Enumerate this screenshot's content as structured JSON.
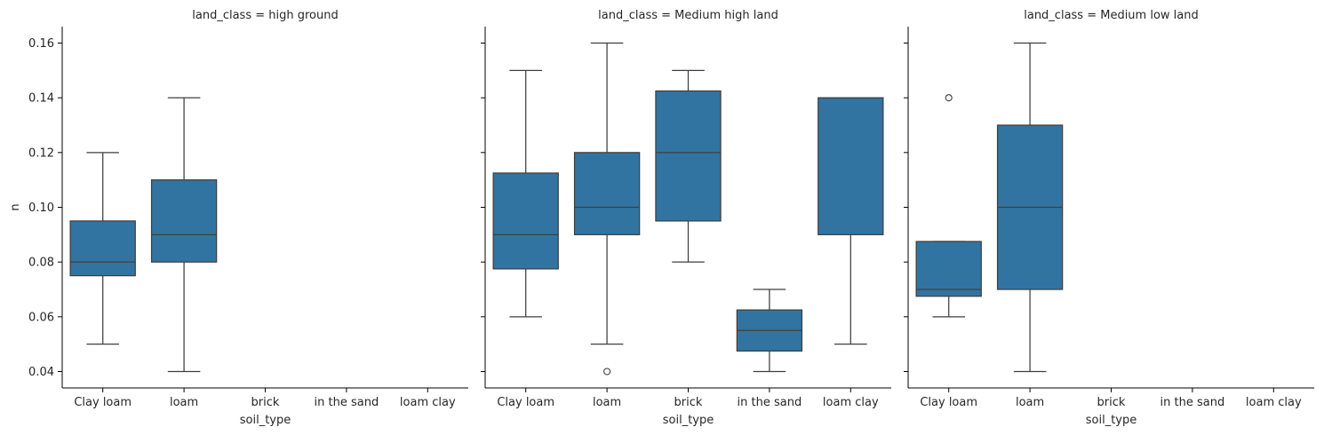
{
  "chart_data": {
    "type": "box",
    "facet_variable": "land_class",
    "xlabel": "soil_type",
    "ylabel": "n",
    "ylim": [
      0.034,
      0.166
    ],
    "yticks": [
      0.04,
      0.06,
      0.08,
      0.1,
      0.12,
      0.14,
      0.16
    ],
    "ytick_labels": [
      "0.04",
      "0.06",
      "0.08",
      "0.10",
      "0.12",
      "0.14",
      "0.16"
    ],
    "categories": [
      "Clay loam",
      "loam",
      "brick",
      "in the sand",
      "loam clay"
    ],
    "box_color": "#3274a1",
    "line_color": "#3f3f3f",
    "panels": [
      {
        "title": "land_class = high ground",
        "boxes": [
          {
            "category": "Clay loam",
            "whislo": 0.05,
            "q1": 0.075,
            "med": 0.08,
            "q3": 0.095,
            "whishi": 0.12,
            "fliers": []
          },
          {
            "category": "loam",
            "whislo": 0.04,
            "q1": 0.08,
            "med": 0.09,
            "q3": 0.11,
            "whishi": 0.14,
            "fliers": []
          }
        ]
      },
      {
        "title": "land_class = Medium high land",
        "boxes": [
          {
            "category": "Clay loam",
            "whislo": 0.06,
            "q1": 0.0775,
            "med": 0.09,
            "q3": 0.1125,
            "whishi": 0.15,
            "fliers": []
          },
          {
            "category": "loam",
            "whislo": 0.05,
            "q1": 0.09,
            "med": 0.1,
            "q3": 0.12,
            "whishi": 0.16,
            "fliers": [
              0.04
            ]
          },
          {
            "category": "brick",
            "whislo": 0.08,
            "q1": 0.095,
            "med": 0.12,
            "q3": 0.1425,
            "whishi": 0.15,
            "fliers": []
          },
          {
            "category": "in the sand",
            "whislo": 0.04,
            "q1": 0.0475,
            "med": 0.055,
            "q3": 0.0625,
            "whishi": 0.07,
            "fliers": []
          },
          {
            "category": "loam clay",
            "whislo": 0.05,
            "q1": 0.09,
            "med": 0.14,
            "q3": 0.14,
            "whishi": 0.14,
            "fliers": []
          }
        ]
      },
      {
        "title": "land_class = Medium low land",
        "boxes": [
          {
            "category": "Clay loam",
            "whislo": 0.06,
            "q1": 0.0675,
            "med": 0.07,
            "q3": 0.0875,
            "whishi": 0.0875,
            "fliers": [
              0.14
            ]
          },
          {
            "category": "loam",
            "whislo": 0.04,
            "q1": 0.07,
            "med": 0.1,
            "q3": 0.13,
            "whishi": 0.16,
            "fliers": []
          }
        ]
      }
    ]
  }
}
